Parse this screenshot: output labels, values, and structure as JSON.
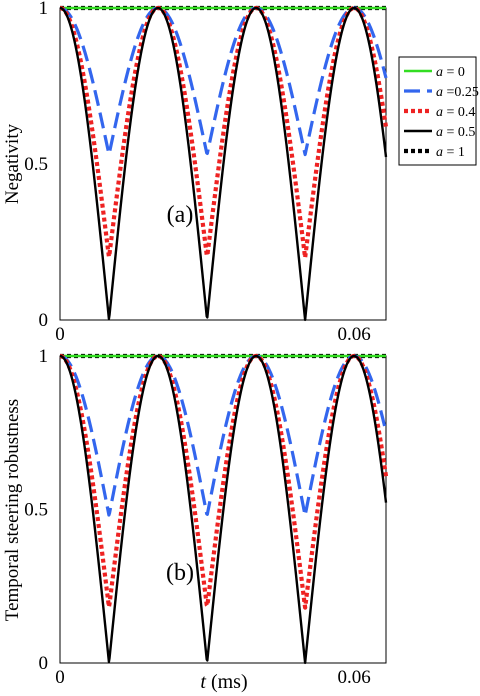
{
  "chart_data": [
    {
      "type": "line",
      "panel_label": "(a)",
      "ylabel": "Negativity",
      "xlim": [
        0,
        0.0665
      ],
      "ylim": [
        0,
        1
      ],
      "x_ticks": [
        "0",
        "0.06"
      ],
      "x_tick_values": [
        0,
        0.06
      ],
      "y_ticks": [
        "0",
        "0.5",
        "1"
      ],
      "y_tick_values": [
        0,
        0.5,
        1
      ],
      "period": 0.02,
      "series": [
        {
          "name": "a = 0",
          "color": "#33dd22",
          "dash": "solid",
          "min_value": 1.0,
          "minima_x": []
        },
        {
          "name": "a = 0.25",
          "color": "#3366ee",
          "dash": "long",
          "min_value": 0.53,
          "minima_x": [
            0.01,
            0.03,
            0.05
          ]
        },
        {
          "name": "a = 0.4",
          "color": "#ee2222",
          "dash": "dotted",
          "min_value": 0.2,
          "minima_x": [
            0.01,
            0.03,
            0.05
          ]
        },
        {
          "name": "a = 0.5",
          "color": "#000000",
          "dash": "solid",
          "min_value": 0.0,
          "minima_x": [
            0.01,
            0.03,
            0.05
          ]
        },
        {
          "name": "a = 1",
          "color": "#000000",
          "dash": "dotted",
          "min_value": 1.0,
          "minima_x": []
        }
      ]
    },
    {
      "type": "line",
      "panel_label": "(b)",
      "ylabel": "Temporal steering robustness",
      "xlabel_var": "t",
      "xlabel_unit": "(ms)",
      "xlim": [
        0,
        0.0665
      ],
      "ylim": [
        0,
        1
      ],
      "x_ticks": [
        "0",
        "0.06"
      ],
      "x_tick_values": [
        0,
        0.06
      ],
      "y_ticks": [
        "0",
        "0.5",
        "1"
      ],
      "y_tick_values": [
        0,
        0.5,
        1
      ],
      "period": 0.02,
      "series": [
        {
          "name": "a = 0",
          "color": "#33dd22",
          "dash": "solid",
          "min_value": 1.0,
          "minima_x": []
        },
        {
          "name": "a = 0.25",
          "color": "#3366ee",
          "dash": "long",
          "min_value": 0.48,
          "minima_x": [
            0.01,
            0.03,
            0.05
          ]
        },
        {
          "name": "a = 0.4",
          "color": "#ee2222",
          "dash": "dotted",
          "min_value": 0.18,
          "minima_x": [
            0.01,
            0.03,
            0.05
          ]
        },
        {
          "name": "a = 0.5",
          "color": "#000000",
          "dash": "solid",
          "min_value": 0.0,
          "minima_x": [
            0.01,
            0.03,
            0.05
          ]
        },
        {
          "name": "a = 1",
          "color": "#000000",
          "dash": "dotted",
          "min_value": 1.0,
          "minima_x": []
        }
      ]
    }
  ],
  "legend": {
    "placement": "right of top panel",
    "items": [
      {
        "var": "a",
        "text": " =  0",
        "color": "#33dd22",
        "dash": "solid"
      },
      {
        "var": "a",
        "text": " =0.25",
        "color": "#3366ee",
        "dash": "long"
      },
      {
        "var": "a",
        "text": " = 0.4",
        "color": "#ee2222",
        "dash": "dotted"
      },
      {
        "var": "a",
        "text": " = 0.5",
        "color": "#000000",
        "dash": "solid"
      },
      {
        "var": "a",
        "text": " =  1",
        "color": "#000000",
        "dash": "dotted"
      }
    ]
  }
}
